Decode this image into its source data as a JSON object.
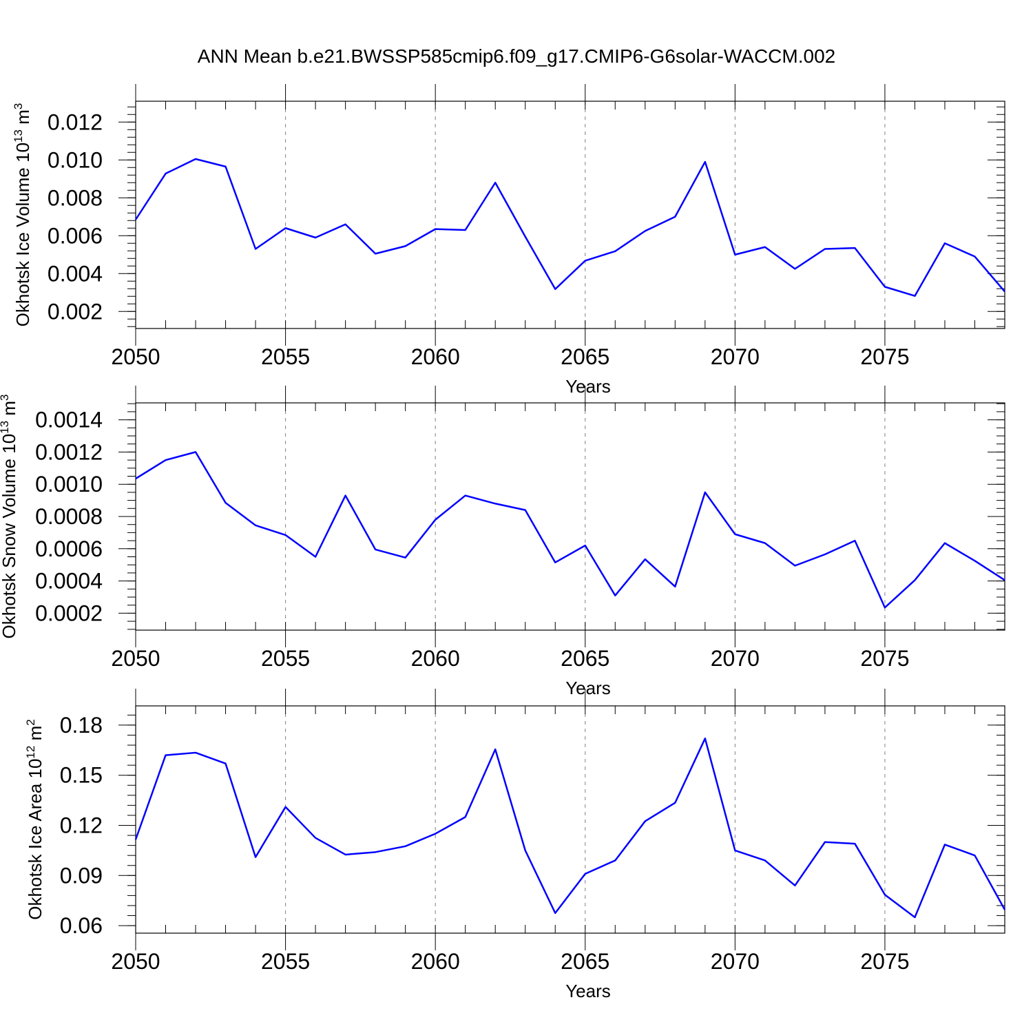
{
  "title": "ANN Mean b.e21.BWSSP585cmip6.f09_g17.CMIP6-G6solar-WACCM.002",
  "line_color": "#0000ff",
  "chart_data": [
    {
      "type": "line",
      "ylabel": "Okhotsk Ice Volume 10",
      "ylabel_exp": "13",
      "ylabel_unit": " m",
      "ylabel_unit_exp": "3",
      "xlabel": "Years",
      "xlim": [
        2050,
        2079
      ],
      "ylim": [
        0.0011,
        0.0131
      ],
      "yticks": [
        0.002,
        0.004,
        0.006,
        0.008,
        0.01,
        0.012
      ],
      "ytick_labels": [
        "0.002",
        "0.004",
        "0.006",
        "0.008",
        "0.010",
        "0.012"
      ],
      "yminor_step": 0.0004,
      "xticks": [
        2050,
        2055,
        2060,
        2065,
        2070,
        2075
      ],
      "xtick_labels": [
        "2050",
        "2055",
        "2060",
        "2065",
        "2070",
        "2075"
      ],
      "x": [
        2050,
        2051,
        2052,
        2053,
        2054,
        2055,
        2056,
        2057,
        2058,
        2059,
        2060,
        2061,
        2062,
        2063,
        2064,
        2065,
        2066,
        2067,
        2068,
        2069,
        2070,
        2071,
        2072,
        2073,
        2074,
        2075,
        2076,
        2077,
        2078,
        2079
      ],
      "series": [
        {
          "name": "Okhotsk Ice Volume",
          "values": [
            0.00685,
            0.00928,
            0.01005,
            0.00965,
            0.0053,
            0.0064,
            0.0059,
            0.0066,
            0.00505,
            0.00545,
            0.00635,
            0.0063,
            0.0088,
            0.00595,
            0.00318,
            0.00468,
            0.00518,
            0.00625,
            0.007,
            0.0099,
            0.005,
            0.0054,
            0.00425,
            0.0053,
            0.00535,
            0.0033,
            0.00282,
            0.0056,
            0.0049,
            0.00305
          ]
        }
      ]
    },
    {
      "type": "line",
      "ylabel": "Okhotsk Snow Volume 10",
      "ylabel_exp": "13",
      "ylabel_unit": " m",
      "ylabel_unit_exp": "3",
      "xlabel": "Years",
      "xlim": [
        2050,
        2079
      ],
      "ylim": [
        9.5e-05,
        0.001505
      ],
      "yticks": [
        0.0002,
        0.0004,
        0.0006,
        0.0008,
        0.001,
        0.0012,
        0.0014
      ],
      "ytick_labels": [
        "0.0002",
        "0.0004",
        "0.0006",
        "0.0008",
        "0.0010",
        "0.0012",
        "0.0014"
      ],
      "yminor_step": 5e-05,
      "xticks": [
        2050,
        2055,
        2060,
        2065,
        2070,
        2075
      ],
      "xtick_labels": [
        "2050",
        "2055",
        "2060",
        "2065",
        "2070",
        "2075"
      ],
      "x": [
        2050,
        2051,
        2052,
        2053,
        2054,
        2055,
        2056,
        2057,
        2058,
        2059,
        2060,
        2061,
        2062,
        2063,
        2064,
        2065,
        2066,
        2067,
        2068,
        2069,
        2070,
        2071,
        2072,
        2073,
        2074,
        2075,
        2076,
        2077,
        2078,
        2079
      ],
      "series": [
        {
          "name": "Okhotsk Snow Volume",
          "values": [
            0.001035,
            0.00115,
            0.0012,
            0.000885,
            0.000745,
            0.000685,
            0.00055,
            0.00093,
            0.000595,
            0.000545,
            0.00078,
            0.00093,
            0.00088,
            0.00084,
            0.000515,
            0.00062,
            0.00031,
            0.000535,
            0.000365,
            0.00095,
            0.00069,
            0.000635,
            0.000495,
            0.000565,
            0.00065,
            0.000235,
            0.000405,
            0.000635,
            0.000525,
            0.000405
          ]
        }
      ]
    },
    {
      "type": "line",
      "ylabel": "Okhotsk Ice Area 10",
      "ylabel_exp": "12",
      "ylabel_unit": " m",
      "ylabel_unit_exp": "2",
      "xlabel": "Years",
      "xlim": [
        2050,
        2079
      ],
      "ylim": [
        0.0555,
        0.1915
      ],
      "yticks": [
        0.06,
        0.09,
        0.12,
        0.15,
        0.18
      ],
      "ytick_labels": [
        "0.06",
        "0.09",
        "0.12",
        "0.15",
        "0.18"
      ],
      "yminor_step": 0.006,
      "xticks": [
        2050,
        2055,
        2060,
        2065,
        2070,
        2075
      ],
      "xtick_labels": [
        "2050",
        "2055",
        "2060",
        "2065",
        "2070",
        "2075"
      ],
      "x": [
        2050,
        2051,
        2052,
        2053,
        2054,
        2055,
        2056,
        2057,
        2058,
        2059,
        2060,
        2061,
        2062,
        2063,
        2064,
        2065,
        2066,
        2067,
        2068,
        2069,
        2070,
        2071,
        2072,
        2073,
        2074,
        2075,
        2076,
        2077,
        2078,
        2079
      ],
      "series": [
        {
          "name": "Okhotsk Ice Area",
          "values": [
            0.1115,
            0.162,
            0.1635,
            0.157,
            0.101,
            0.131,
            0.1125,
            0.1025,
            0.104,
            0.1075,
            0.115,
            0.125,
            0.1655,
            0.105,
            0.0675,
            0.091,
            0.099,
            0.1225,
            0.1335,
            0.172,
            0.105,
            0.099,
            0.084,
            0.11,
            0.109,
            0.0785,
            0.065,
            0.1085,
            0.102,
            0.0695
          ]
        }
      ]
    }
  ]
}
